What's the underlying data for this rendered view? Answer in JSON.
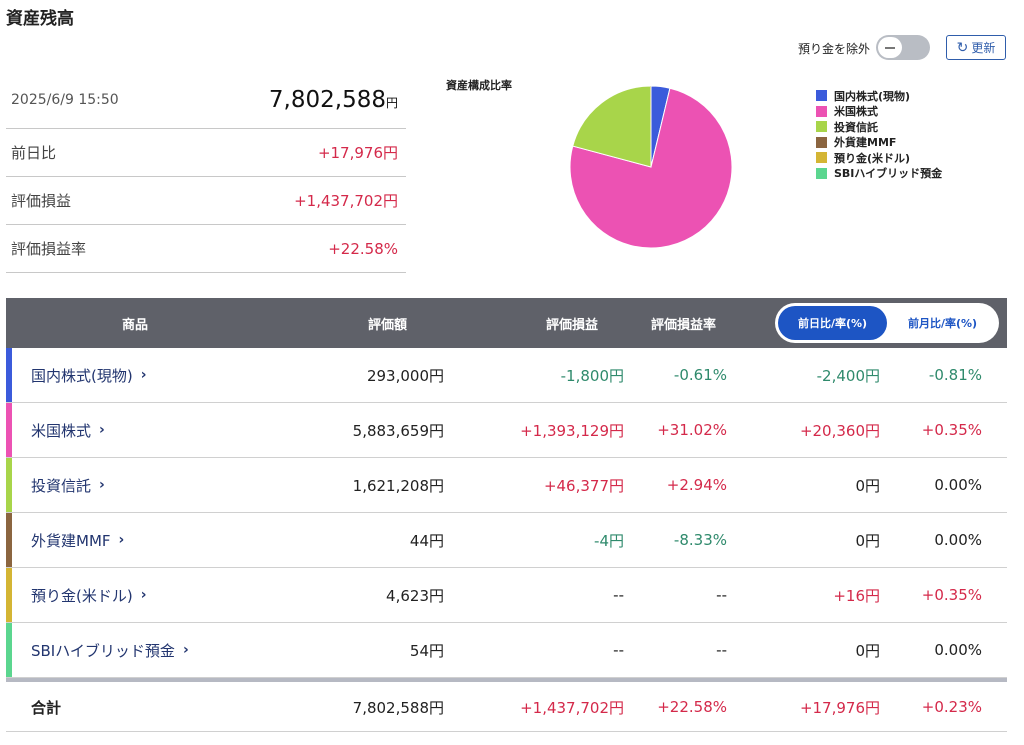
{
  "page": {
    "title": "資産残高"
  },
  "controls": {
    "exclude_label": "預り金を除外",
    "refresh_label": "更新"
  },
  "summary": {
    "datetime": "2025/6/9 15:50",
    "total_value": "7,802,588",
    "yen": "円",
    "rows": [
      {
        "label": "前日比",
        "value": "+17,976円"
      },
      {
        "label": "評価損益",
        "value": "+1,437,702円"
      },
      {
        "label": "評価損益率",
        "value": "+22.58%"
      }
    ]
  },
  "chart_data": {
    "type": "pie",
    "title": "資産構成比率",
    "legend_position": "right",
    "slices": [
      {
        "label": "国内株式(現物)",
        "value": 293000,
        "color": "#3b5bdb"
      },
      {
        "label": "米国株式",
        "value": 5883659,
        "color": "#ec52b3"
      },
      {
        "label": "投資信託",
        "value": 1621208,
        "color": "#a8d54a"
      },
      {
        "label": "外貨建MMF",
        "value": 44,
        "color": "#8b6540"
      },
      {
        "label": "預り金(米ドル)",
        "value": 4623,
        "color": "#d4b534"
      },
      {
        "label": "SBIハイブリッド預金",
        "value": 54,
        "color": "#5bd68f"
      }
    ]
  },
  "table": {
    "headers": {
      "name": "商品",
      "value": "評価額",
      "pl": "評価損益",
      "pl_rate": "評価損益率"
    },
    "tabs": {
      "daily": "前日比/率(%)",
      "monthly": "前月比/率(%)"
    },
    "rows": [
      {
        "name": "国内株式(現物)",
        "value": "293,000円",
        "pl": "-1,800円",
        "pl_rate": "-0.61%",
        "diff": "-2,400円",
        "diff_rate": "-0.81%"
      },
      {
        "name": "米国株式",
        "value": "5,883,659円",
        "pl": "+1,393,129円",
        "pl_rate": "+31.02%",
        "diff": "+20,360円",
        "diff_rate": "+0.35%"
      },
      {
        "name": "投資信託",
        "value": "1,621,208円",
        "pl": "+46,377円",
        "pl_rate": "+2.94%",
        "diff": "0円",
        "diff_rate": "0.00%"
      },
      {
        "name": "外貨建MMF",
        "value": "44円",
        "pl": "-4円",
        "pl_rate": "-8.33%",
        "diff": "0円",
        "diff_rate": "0.00%"
      },
      {
        "name": "預り金(米ドル)",
        "value": "4,623円",
        "pl": "--",
        "pl_rate": "--",
        "diff": "+16円",
        "diff_rate": "+0.35%"
      },
      {
        "name": "SBIハイブリッド預金",
        "value": "54円",
        "pl": "--",
        "pl_rate": "--",
        "diff": "0円",
        "diff_rate": "0.00%"
      }
    ],
    "total": {
      "label": "合計",
      "value": "7,802,588円",
      "pl": "+1,437,702円",
      "pl_rate": "+22.58%",
      "diff": "+17,976円",
      "diff_rate": "+0.23%"
    }
  }
}
